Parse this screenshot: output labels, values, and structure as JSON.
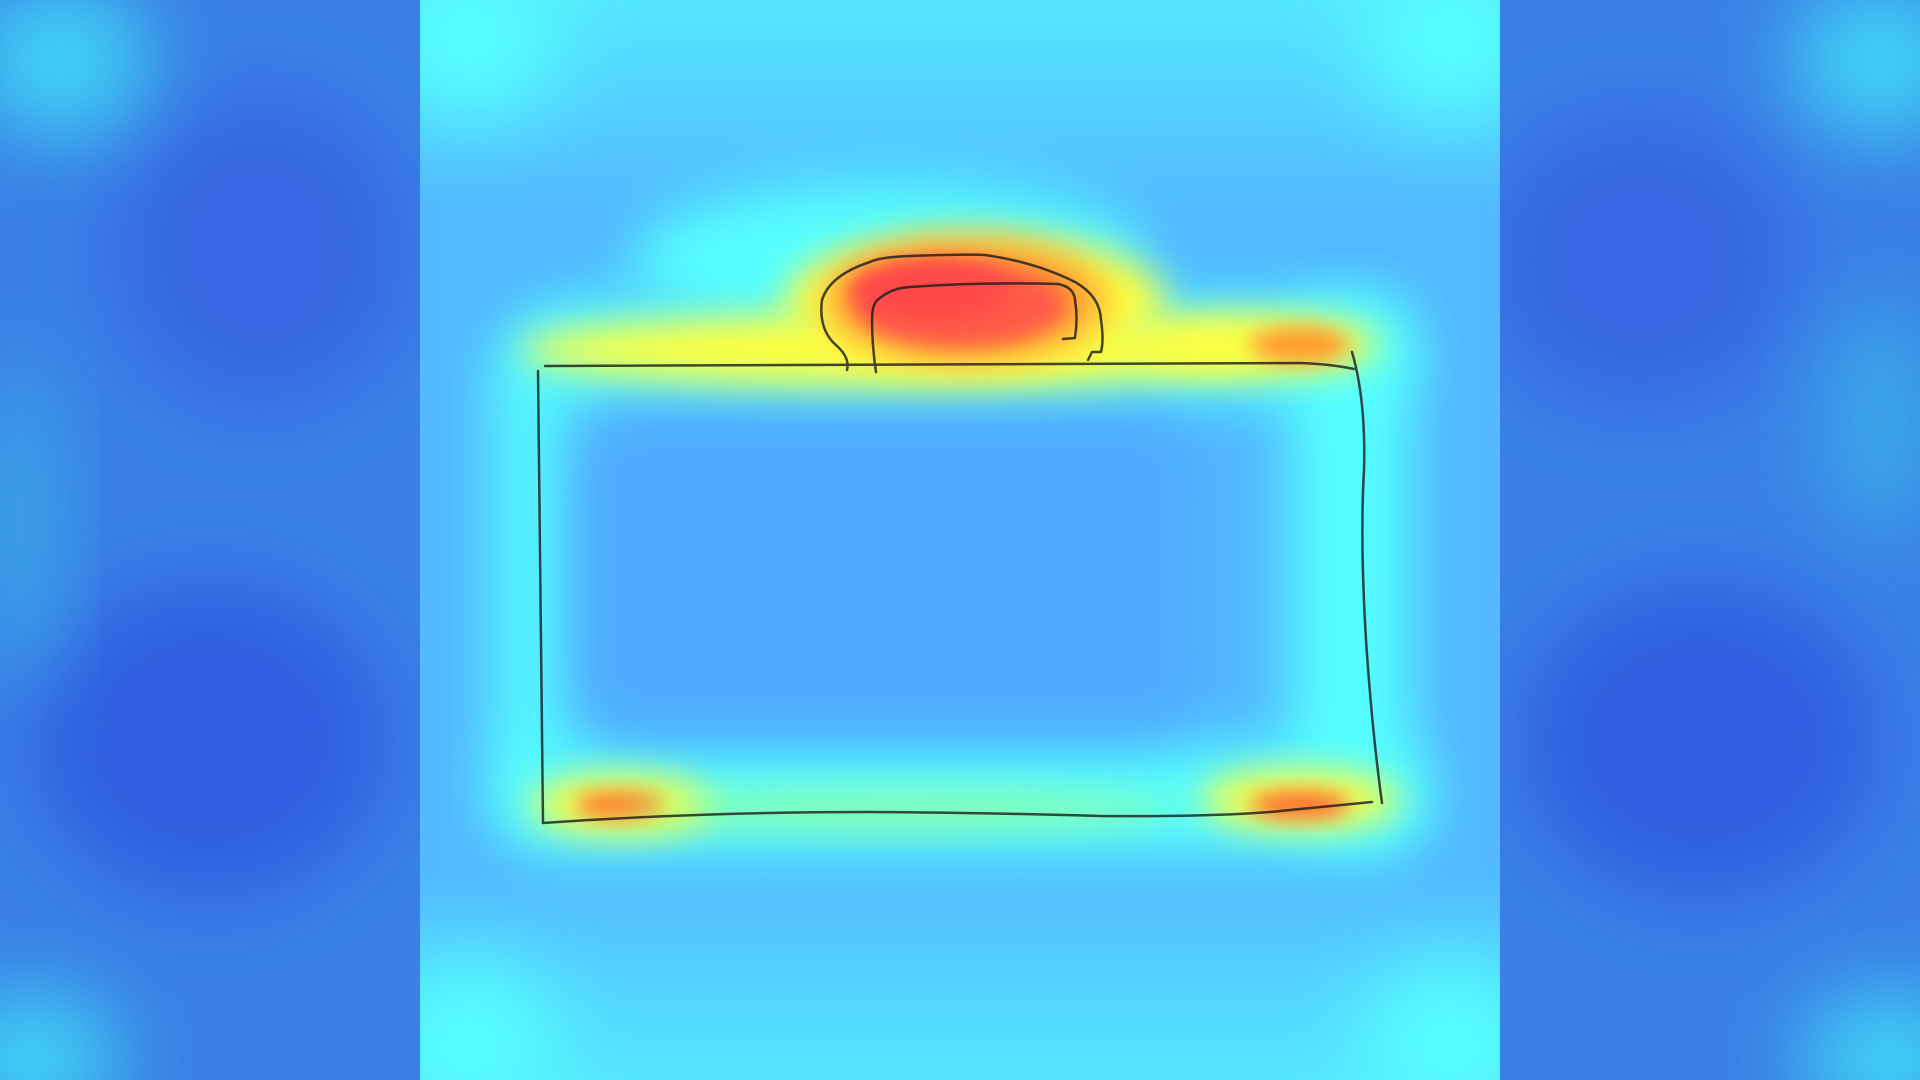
{
  "visualization": {
    "type": "attention-heatmap-overlay",
    "colormap": "jet",
    "sketch_subject": "briefcase",
    "palette": {
      "deep_blue": "#2f5fe0",
      "mid_blue": "#3f8ff0",
      "light_blue": "#55b0ff",
      "cyan": "#55ffff",
      "yellow": "#ffff40",
      "orange": "#ff9a30",
      "red": "#ff4a4a",
      "stroke": "#1a1a1a"
    },
    "hotspots": [
      {
        "region": "handle",
        "intensity": 1.0
      },
      {
        "region": "top-edge-right",
        "intensity": 0.8
      },
      {
        "region": "bottom-left-corner",
        "intensity": 0.85
      },
      {
        "region": "bottom-right-corner",
        "intensity": 0.85
      },
      {
        "region": "top-edge",
        "intensity": 0.6
      },
      {
        "region": "bottom-edge",
        "intensity": 0.5
      }
    ]
  }
}
